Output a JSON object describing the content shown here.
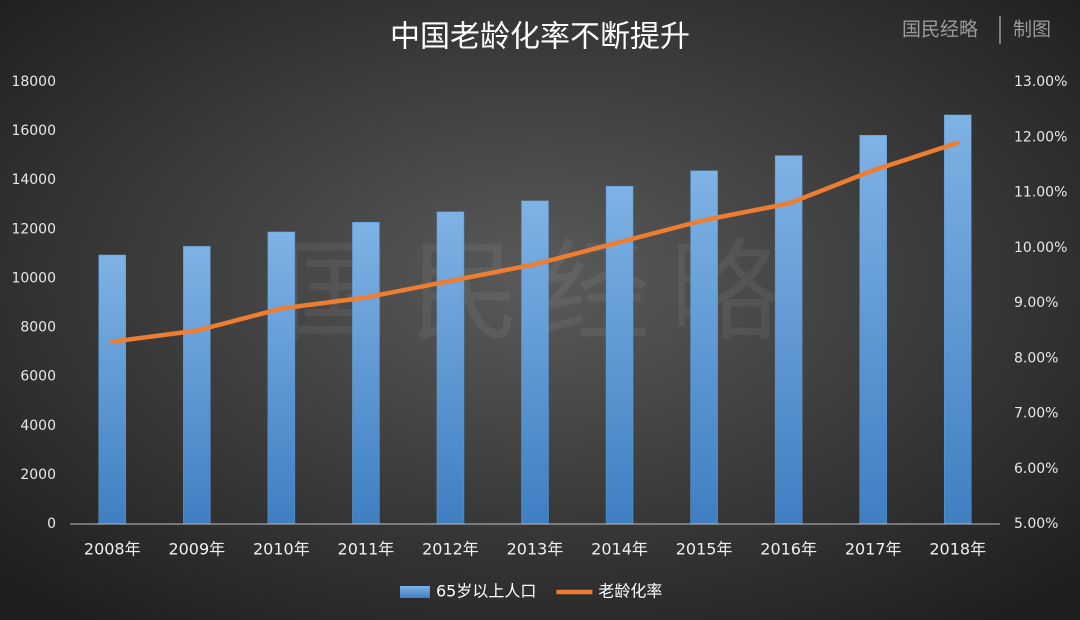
{
  "chart_data": {
    "type": "bar_line",
    "title": "中国老龄化率不断提升",
    "credit": [
      "国民经略",
      "制图"
    ],
    "categories": [
      "2008年",
      "2009年",
      "2010年",
      "2011年",
      "2012年",
      "2013年",
      "2014年",
      "2015年",
      "2016年",
      "2017年",
      "2018年"
    ],
    "series": [
      {
        "name": "65岁以上人口",
        "type": "bar",
        "color": "#5b9bd5",
        "values": [
          10956,
          11307,
          11894,
          12288,
          12714,
          13161,
          13755,
          14386,
          15003,
          15831,
          16658
        ]
      },
      {
        "name": "老龄化率",
        "type": "line",
        "axis": "y2",
        "color": "#ed7d31",
        "values": [
          8.3,
          8.5,
          8.9,
          9.1,
          9.4,
          9.7,
          10.1,
          10.5,
          10.8,
          11.4,
          11.9
        ]
      }
    ],
    "ylim": [
      0,
      18000
    ],
    "yticks": [
      0,
      2000,
      4000,
      6000,
      8000,
      10000,
      12000,
      14000,
      16000,
      18000
    ],
    "y2lim": [
      5,
      13
    ],
    "y2ticks": [
      {
        "value": 5,
        "label": "5.00%"
      },
      {
        "value": 6,
        "label": "6.00%"
      },
      {
        "value": 7,
        "label": "7.00%"
      },
      {
        "value": 8,
        "label": "8.00%"
      },
      {
        "value": 9,
        "label": "9.00%"
      },
      {
        "value": 10,
        "label": "10.00%"
      },
      {
        "value": 11,
        "label": "11.00%"
      },
      {
        "value": 12,
        "label": "12.00%"
      },
      {
        "value": 13,
        "label": "13.00%"
      }
    ],
    "legend": "bottom"
  }
}
